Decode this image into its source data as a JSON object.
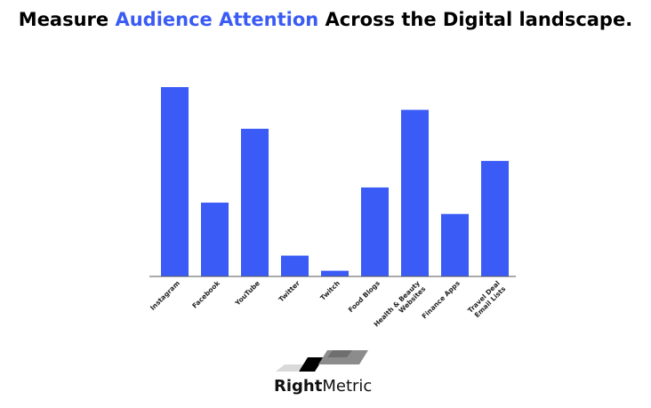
{
  "title": {
    "part1": "Measure ",
    "highlight": "Audience Attention",
    "part2": " Across the Digital landscape."
  },
  "colors": {
    "accent": "#3A5BF5",
    "bar": "#3A5BF5",
    "title": "#000000",
    "axis": "#555555"
  },
  "chart_data": {
    "type": "bar",
    "title": "",
    "xlabel": "",
    "ylabel": "",
    "ylim": [
      0,
      100
    ],
    "grid": false,
    "legend": "none",
    "categories": [
      [
        "Instagram"
      ],
      [
        "Facebook"
      ],
      [
        "YouTube"
      ],
      [
        "Twitter"
      ],
      [
        "Twitch"
      ],
      [
        "Food Blogs"
      ],
      [
        "Health & Beauty",
        "Websites"
      ],
      [
        "Finance Apps"
      ],
      [
        "Travel Deal",
        "Email Lists"
      ]
    ],
    "values": [
      100,
      39,
      78,
      11,
      3,
      47,
      88,
      33,
      61
    ]
  },
  "logo": {
    "bold": "Right",
    "regular": "Metric"
  }
}
